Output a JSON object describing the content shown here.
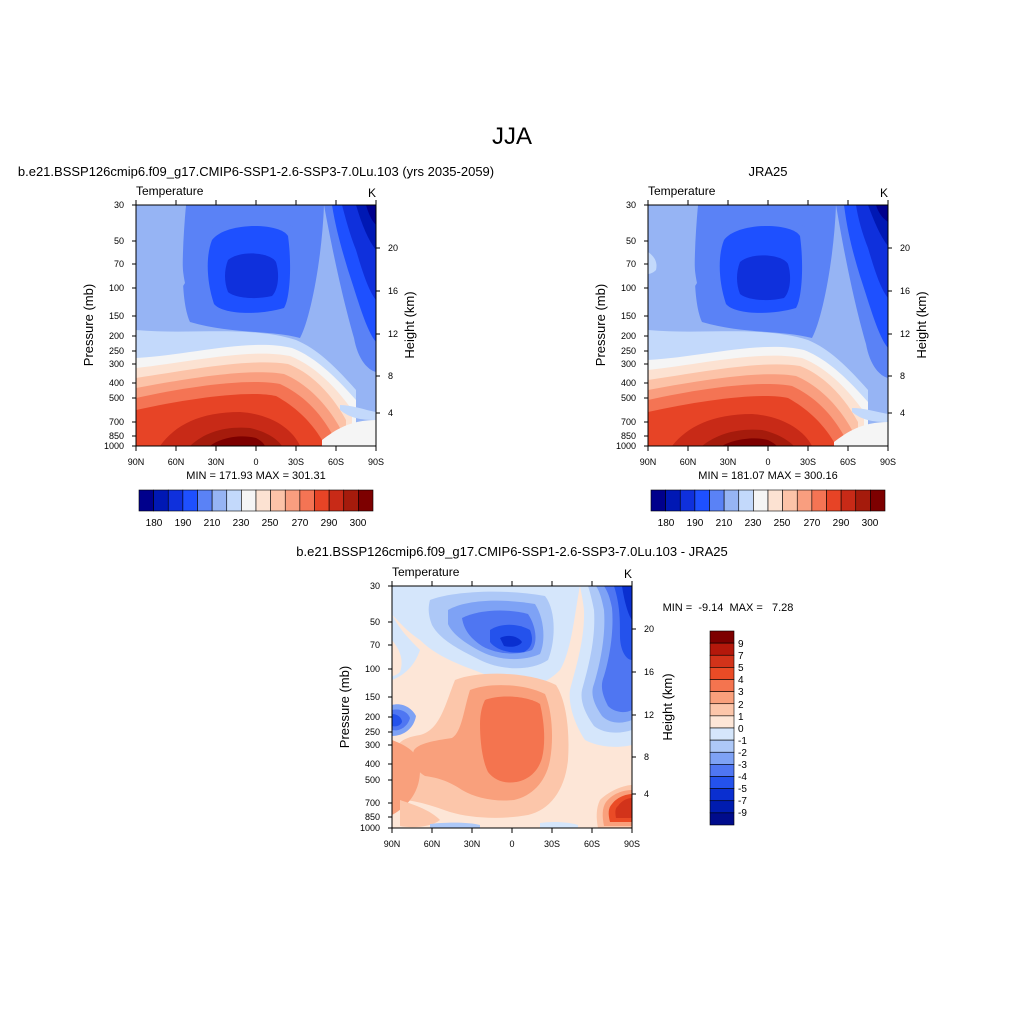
{
  "page": {
    "title": "JJA"
  },
  "chart_data": [
    {
      "id": "model",
      "type": "heatmap",
      "title": "b.e21.BSSP126cmip6.f09_g17.CMIP6-SSP1-2.6-SSP3-7.0Lu.103 (yrs 2035-2059)",
      "subtitle_left": "Temperature",
      "units": "K",
      "xlabel": "",
      "ylabel": "Pressure (mb)",
      "ylabel_right": "Height (km)",
      "x_ticks": [
        "90N",
        "60N",
        "30N",
        "0",
        "30S",
        "60S",
        "90S"
      ],
      "y_ticks": [
        "30",
        "50",
        "70",
        "100",
        "150",
        "200",
        "250",
        "300",
        "400",
        "500",
        "700",
        "850",
        "1000"
      ],
      "y2_ticks": [
        "20",
        "16",
        "12",
        "8",
        "4"
      ],
      "stats": "MIN = 171.93  MAX = 301.31",
      "min": 171.93,
      "max": 301.31,
      "colorbar": {
        "orientation": "horizontal",
        "labels": [
          "180",
          "190",
          "210",
          "230",
          "250",
          "270",
          "290",
          "300"
        ],
        "colors": [
          "#00008c",
          "#0018b4",
          "#0f30dc",
          "#1e50ff",
          "#5a82f6",
          "#96b4f4",
          "#c3d9fb",
          "#f5f5f5",
          "#fce2d2",
          "#fcc3a8",
          "#f99e7f",
          "#f47454",
          "#e74426",
          "#c82a17",
          "#a51b0c",
          "#7d0000"
        ]
      }
    },
    {
      "id": "obs",
      "type": "heatmap",
      "title": "JRA25",
      "subtitle_left": "Temperature",
      "units": "K",
      "xlabel": "",
      "ylabel": "Pressure (mb)",
      "ylabel_right": "Height (km)",
      "x_ticks": [
        "90N",
        "60N",
        "30N",
        "0",
        "30S",
        "60S",
        "90S"
      ],
      "y_ticks": [
        "30",
        "50",
        "70",
        "100",
        "150",
        "200",
        "250",
        "300",
        "400",
        "500",
        "700",
        "850",
        "1000"
      ],
      "y2_ticks": [
        "20",
        "16",
        "12",
        "8",
        "4"
      ],
      "stats": "MIN = 181.07  MAX = 300.16",
      "min": 181.07,
      "max": 300.16,
      "colorbar": {
        "orientation": "horizontal",
        "labels": [
          "180",
          "190",
          "210",
          "230",
          "250",
          "270",
          "290",
          "300"
        ],
        "colors": [
          "#00008c",
          "#0018b4",
          "#0f30dc",
          "#1e50ff",
          "#5a82f6",
          "#96b4f4",
          "#c3d9fb",
          "#f5f5f5",
          "#fce2d2",
          "#fcc3a8",
          "#f99e7f",
          "#f47454",
          "#e74426",
          "#c82a17",
          "#a51b0c",
          "#7d0000"
        ]
      }
    },
    {
      "id": "diff",
      "type": "heatmap",
      "title": "b.e21.BSSP126cmip6.f09_g17.CMIP6-SSP1-2.6-SSP3-7.0Lu.103 - JRA25",
      "subtitle_left": "Temperature",
      "units": "K",
      "xlabel": "",
      "ylabel": "Pressure (mb)",
      "ylabel_right": "Height (km)",
      "x_ticks": [
        "90N",
        "60N",
        "30N",
        "0",
        "30S",
        "60S",
        "90S"
      ],
      "y_ticks": [
        "30",
        "50",
        "70",
        "100",
        "150",
        "200",
        "250",
        "300",
        "400",
        "500",
        "700",
        "850",
        "1000"
      ],
      "y2_ticks": [
        "20",
        "16",
        "12",
        "8",
        "4"
      ],
      "stats": "MIN =  -9.14  MAX =   7.28",
      "min": -9.14,
      "max": 7.28,
      "colorbar": {
        "orientation": "vertical",
        "labels": [
          "9",
          "7",
          "5",
          "4",
          "3",
          "2",
          "1",
          "0",
          "-1",
          "-2",
          "-3",
          "-4",
          "-5",
          "-7",
          "-9"
        ],
        "colors": [
          "#7d0000",
          "#b4180b",
          "#d2331a",
          "#ea4b26",
          "#f4744f",
          "#f9a07c",
          "#fcc6aa",
          "#fde6d7",
          "#d5e6fb",
          "#adc8f7",
          "#7ea2f5",
          "#4f76f2",
          "#2452ec",
          "#0a2fd0",
          "#001cb0",
          "#000c8c"
        ]
      }
    }
  ]
}
